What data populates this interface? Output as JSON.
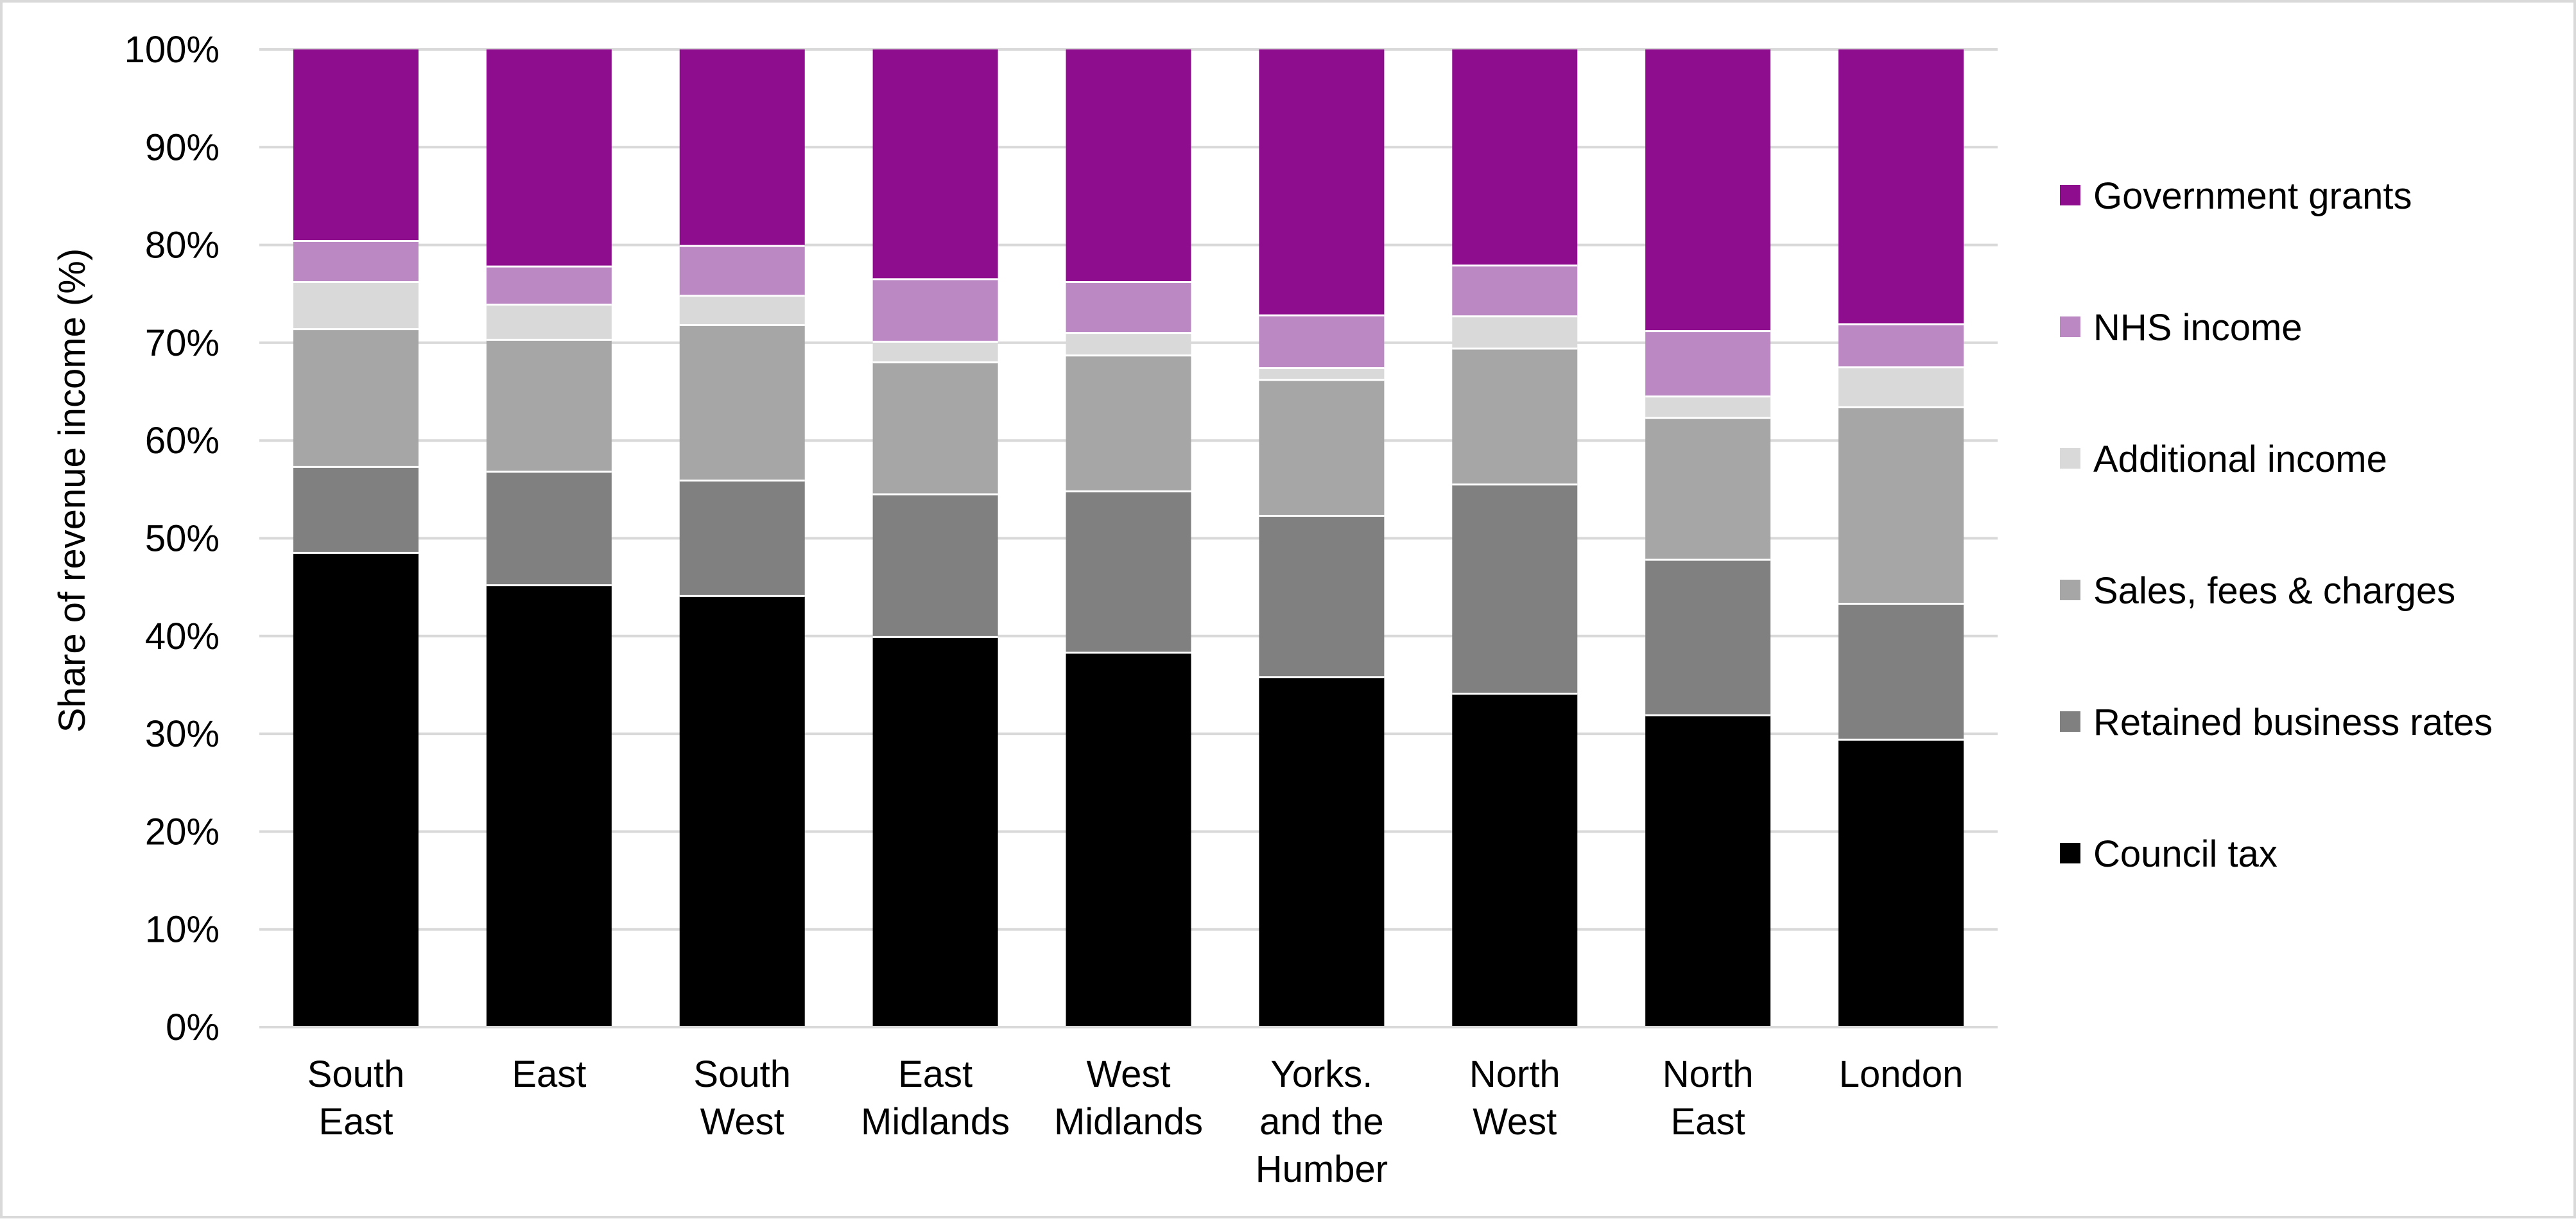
{
  "chart_data": {
    "type": "bar",
    "stacked": true,
    "normalized_percent": true,
    "ylabel": "Share of revenue income (%)",
    "xlabel": "",
    "ylim": [
      0,
      100
    ],
    "yticks": [
      "0%",
      "10%",
      "20%",
      "30%",
      "40%",
      "50%",
      "60%",
      "70%",
      "80%",
      "90%",
      "100%"
    ],
    "grid": "horizontal",
    "legend_position": "right",
    "categories": [
      [
        "South",
        "East"
      ],
      [
        "East"
      ],
      [
        "South",
        "West"
      ],
      [
        "East",
        "Midlands"
      ],
      [
        "West",
        "Midlands"
      ],
      [
        "Yorks.",
        "and the",
        "Humber"
      ],
      [
        "North",
        "West"
      ],
      [
        "North",
        "East"
      ],
      [
        "London"
      ]
    ],
    "series": [
      {
        "name": "Council tax",
        "color": "#000000",
        "values": [
          48.5,
          45.2,
          44.1,
          39.9,
          38.3,
          35.8,
          34.1,
          31.9,
          29.4
        ]
      },
      {
        "name": "Retained business rates",
        "color": "#808080",
        "values": [
          8.8,
          11.6,
          11.8,
          14.6,
          16.5,
          16.5,
          21.4,
          15.9,
          13.9
        ]
      },
      {
        "name": "Sales, fees & charges",
        "color": "#a6a6a6",
        "values": [
          14.1,
          13.5,
          15.9,
          13.5,
          13.9,
          13.9,
          13.9,
          14.5,
          20.1
        ]
      },
      {
        "name": "Additional income",
        "color": "#d9d9d9",
        "values": [
          4.8,
          3.6,
          3.0,
          2.1,
          2.3,
          1.2,
          3.3,
          2.2,
          4.1
        ]
      },
      {
        "name": "NHS income",
        "color": "#bb88c4",
        "values": [
          4.2,
          3.9,
          5.1,
          6.4,
          5.2,
          5.4,
          5.2,
          6.7,
          4.4
        ]
      },
      {
        "name": "Government grants",
        "color": "#8e0c8e",
        "values": [
          19.6,
          22.2,
          20.1,
          23.5,
          23.8,
          27.2,
          22.1,
          28.8,
          28.1
        ]
      }
    ],
    "legend_order": [
      "Government grants",
      "NHS income",
      "Additional income",
      "Sales, fees & charges",
      "Retained business rates",
      "Council tax"
    ]
  }
}
